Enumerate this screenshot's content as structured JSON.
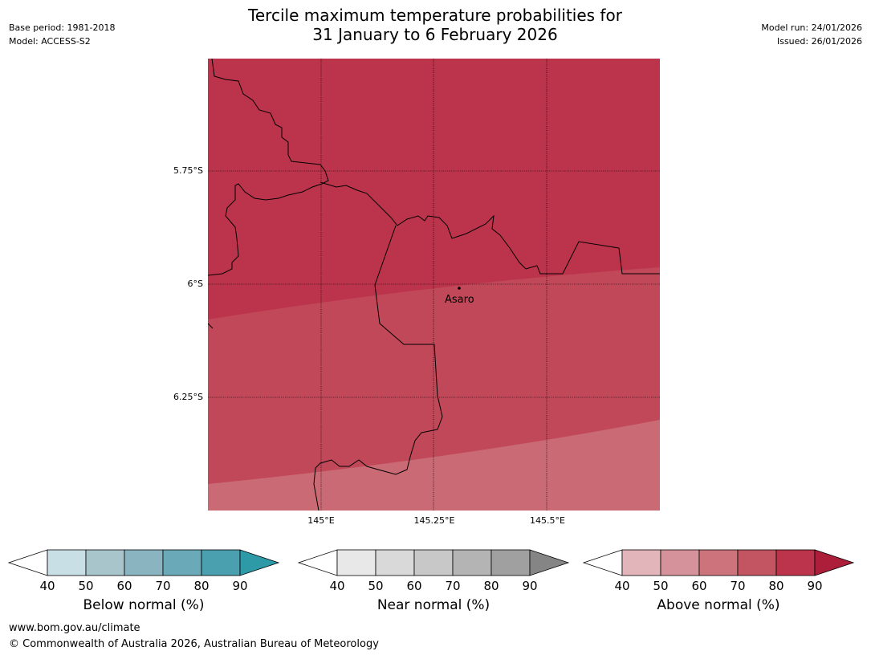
{
  "title_line1": "Tercile maximum temperature probabilities for",
  "title_line2": "31 January to 6 February 2026",
  "base_period": "Base period: 1981-2018",
  "model": "Model: ACCESS-S2",
  "model_run": "Model run: 24/01/2026",
  "issued": "Issued: 26/01/2026",
  "map": {
    "lat_ticks": [
      "5.75°S",
      "6°S",
      "6.25°S"
    ],
    "lon_ticks": [
      "145°E",
      "145.25°E",
      "145.5°E"
    ],
    "place_label": "Asaro",
    "colors": {
      "band_high": "#bc344b",
      "band_mid": "#c04858",
      "band_low": "#c96a74"
    }
  },
  "colorbars": [
    {
      "title": "Below normal (%)",
      "ticks": [
        "40",
        "50",
        "60",
        "70",
        "80",
        "90"
      ],
      "colors": [
        "#ffffff",
        "#c8e0e5",
        "#a8c5cb",
        "#8ab4c0",
        "#6aaab8",
        "#4aa0ae",
        "#2e9aa8"
      ]
    },
    {
      "title": "Near normal (%)",
      "ticks": [
        "40",
        "50",
        "60",
        "70",
        "80",
        "90"
      ],
      "colors": [
        "#ffffff",
        "#e8e8e8",
        "#d9d9d9",
        "#c8c8c8",
        "#b4b4b4",
        "#a0a0a0",
        "#858585"
      ]
    },
    {
      "title": "Above normal (%)",
      "ticks": [
        "40",
        "50",
        "60",
        "70",
        "80",
        "90"
      ],
      "colors": [
        "#ffffff",
        "#e2b5bb",
        "#d6929a",
        "#cc737c",
        "#c35562",
        "#bc344b",
        "#ad1e3a"
      ]
    }
  ],
  "footer_url": "www.bom.gov.au/climate",
  "footer_copyright": "© Commonwealth of Australia 2026, Australian Bureau of Meteorology"
}
